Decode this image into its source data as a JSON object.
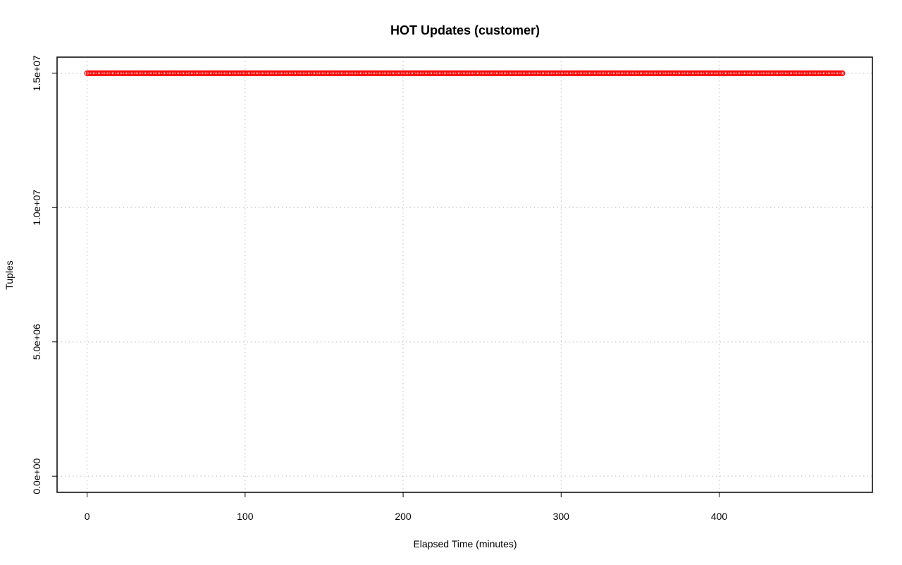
{
  "chart_data": {
    "type": "scatter",
    "title": "HOT Updates (customer)",
    "xlabel": "Elapsed Time (minutes)",
    "ylabel": "Tuples",
    "xlim": [
      -19,
      497
    ],
    "ylim": [
      -600000,
      15600000
    ],
    "x_ticks": [
      0,
      100,
      200,
      300,
      400
    ],
    "x_tick_labels": [
      "0",
      "100",
      "200",
      "300",
      "400"
    ],
    "y_ticks": [
      0,
      5000000,
      10000000,
      15000000
    ],
    "y_tick_labels": [
      "0.0e+00",
      "5.0e+06",
      "1.0e+07",
      "1.5e+07"
    ],
    "grid": true,
    "series": [
      {
        "color": "#ff0000",
        "marker": "open-circle",
        "x_start": 0,
        "x_end": 478,
        "x_step": 1,
        "y_constant": 15000000
      }
    ]
  }
}
